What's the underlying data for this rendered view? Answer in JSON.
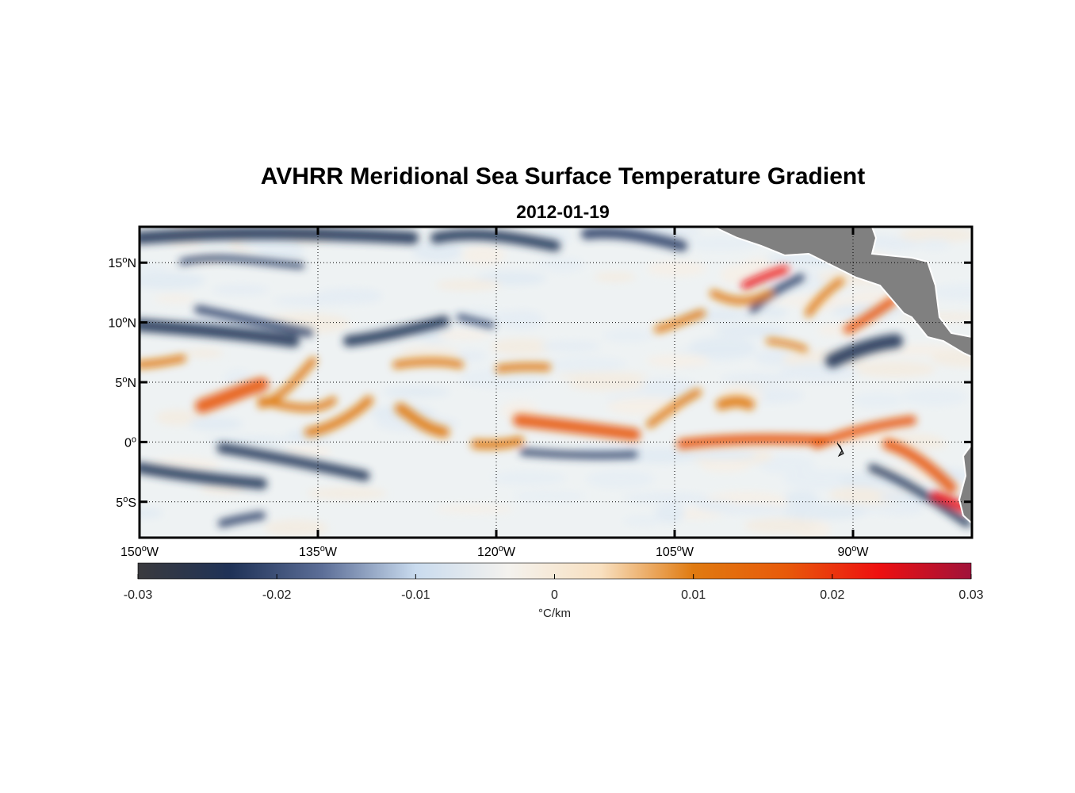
{
  "title": "AVHRR Meridional Sea Surface Temperature Gradient",
  "date": "2012-01-19",
  "map": {
    "lon_range": [
      -150,
      -80
    ],
    "lat_range": [
      -8,
      18
    ],
    "grid": "dotted",
    "land_color": "#808080",
    "lon_ticks": [
      {
        "deg": "150",
        "hemi": "W"
      },
      {
        "deg": "135",
        "hemi": "W"
      },
      {
        "deg": "120",
        "hemi": "W"
      },
      {
        "deg": "105",
        "hemi": "W"
      },
      {
        "deg": "90",
        "hemi": "W"
      }
    ],
    "lat_ticks": [
      {
        "deg": "15",
        "hemi": "N"
      },
      {
        "deg": "10",
        "hemi": "N"
      },
      {
        "deg": "5",
        "hemi": "N"
      },
      {
        "deg": "0",
        "hemi": ""
      },
      {
        "deg": "5",
        "hemi": "S"
      }
    ]
  },
  "colorbar": {
    "range": [
      -0.03,
      0.03
    ],
    "tick_labels": [
      "-0.03",
      "-0.02",
      "-0.01",
      "0",
      "0.01",
      "0.02",
      "0.03"
    ],
    "units": "°C/km",
    "colors": [
      "#3a3a3e",
      "#1f3257",
      "#5d6f98",
      "#c9dbee",
      "#f4f2ee",
      "#f8e0c0",
      "#e07a10",
      "#e85a0a",
      "#ee1010",
      "#a0123a"
    ]
  }
}
